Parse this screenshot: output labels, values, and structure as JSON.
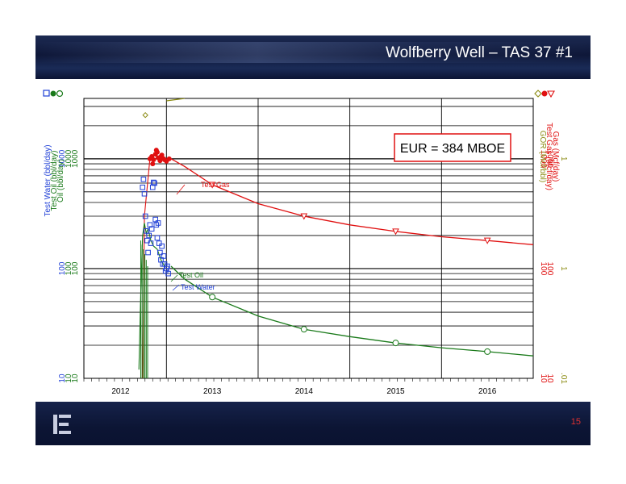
{
  "slide": {
    "title": "Wolfberry Well – TAS 37 #1",
    "page_number": "15",
    "logo_icon": "company-logo-icon"
  },
  "colors": {
    "water": "#1f3fd6",
    "oil": "#1a7a1a",
    "gas": "#e01010",
    "gor": "#8a8a10",
    "header_bg": "#0e1738"
  },
  "chart_data": {
    "type": "line",
    "y_scale": "log",
    "x_ticks": [
      "2012",
      "2013",
      "2014",
      "2015",
      "2016"
    ],
    "y_left_ticks": [
      "1000",
      "100",
      "10"
    ],
    "y_right_ticks_gas": [
      "1000",
      "100",
      "10"
    ],
    "y_right_ticks_gor": [
      "1",
      "1",
      ".01"
    ],
    "left_axis_labels": [
      "Test Water (bbl/day)",
      "Test Oil (bbl/day)",
      "Oil (bbl/day)"
    ],
    "right_axis_labels": [
      "GOR (Mcf/bbl)",
      "Test Gas (Mcf/day)",
      "Gas (Mcf/day)"
    ],
    "annotation": "EUR = 384 MBOE",
    "labels": {
      "gas": "Test Gas",
      "oil": "Test Oil",
      "water": "Test Water"
    },
    "grid": true,
    "series": [
      {
        "name": "Gas (Mcf/day)",
        "color": "#e01010",
        "x": [
          2012.55,
          2012.7,
          2013.0,
          2013.5,
          2014.0,
          2014.5,
          2015.0,
          2015.5,
          2016.0,
          2016.5
        ],
        "y": [
          1000,
          850,
          580,
          390,
          300,
          250,
          218,
          195,
          180,
          165
        ],
        "markers_x": [
          2013.0,
          2014.0,
          2015.0,
          2016.0
        ],
        "markers_y": [
          580,
          300,
          218,
          180
        ]
      },
      {
        "name": "Oil (bbl/day)",
        "color": "#1a7a1a",
        "x": [
          2012.55,
          2012.7,
          2013.0,
          2013.5,
          2014.0,
          2014.5,
          2015.0,
          2015.5,
          2016.0,
          2016.5
        ],
        "y": [
          105,
          80,
          55,
          37,
          28,
          24,
          21,
          19,
          17.5,
          16
        ],
        "markers_x": [
          2013.0,
          2014.0,
          2015.0,
          2016.0
        ],
        "markers_y": [
          55,
          28,
          21,
          17.5
        ]
      },
      {
        "name": "Test Gas (Mcf/day)",
        "color": "#e01010",
        "x": [
          2012.32,
          2012.34,
          2012.36,
          2012.38,
          2012.4,
          2012.41,
          2012.43,
          2012.45,
          2012.47,
          2012.5,
          2012.53,
          2012.35,
          2012.39,
          2012.44,
          2012.48
        ],
        "y": [
          1000,
          1050,
          980,
          1100,
          1150,
          1020,
          960,
          1080,
          1000,
          950,
          1000,
          900,
          1200,
          1050,
          980
        ]
      },
      {
        "name": "Test Oil (bbl/day)",
        "color": "#1a7a1a",
        "x": [
          2012.2,
          2012.22,
          2012.24,
          2012.26,
          2012.28,
          2012.3,
          2012.33,
          2012.36,
          2012.4,
          2012.44,
          2012.48
        ],
        "y": [
          12,
          60,
          200,
          260,
          210,
          230,
          180,
          160,
          150,
          120,
          105
        ]
      },
      {
        "name": "Test Water (bbl/day)",
        "color": "#1f3fd6",
        "x": [
          2012.24,
          2012.25,
          2012.26,
          2012.27,
          2012.28,
          2012.29,
          2012.3,
          2012.31,
          2012.32,
          2012.33,
          2012.34,
          2012.35,
          2012.36,
          2012.37,
          2012.38,
          2012.39,
          2012.4,
          2012.41,
          2012.42,
          2012.43,
          2012.44,
          2012.45,
          2012.46,
          2012.47,
          2012.48,
          2012.49,
          2012.5,
          2012.51,
          2012.52
        ],
        "y": [
          550,
          650,
          480,
          300,
          220,
          180,
          140,
          200,
          250,
          170,
          230,
          550,
          610,
          600,
          280,
          250,
          190,
          260,
          170,
          140,
          120,
          160,
          110,
          130,
          110,
          95,
          100,
          105,
          90
        ]
      },
      {
        "name": "GOR (Mcf/bbl)",
        "color": "#8a8a10",
        "x": [
          2012.27
        ],
        "y": [
          2500
        ]
      }
    ]
  }
}
